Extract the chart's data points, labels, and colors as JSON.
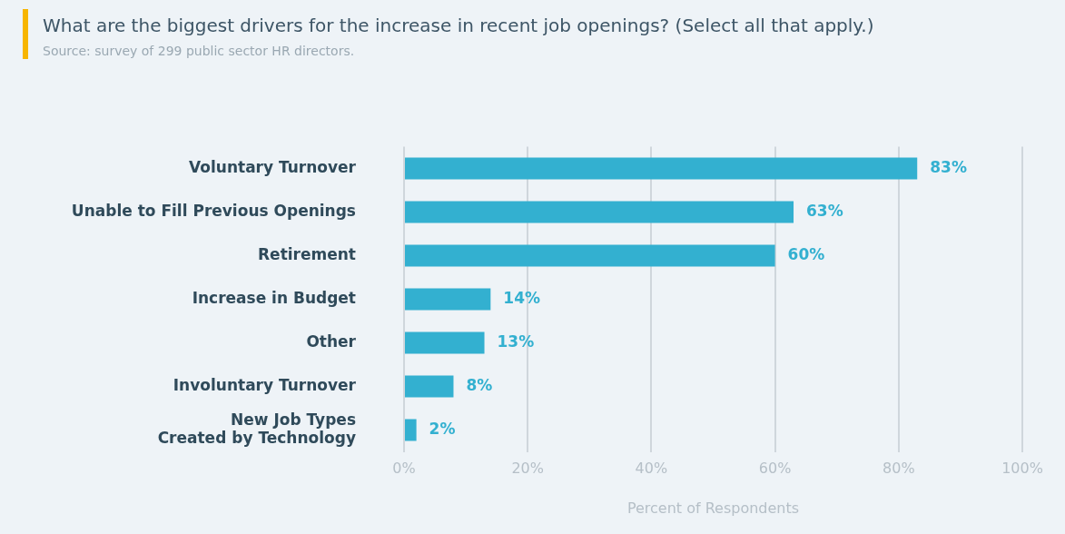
{
  "chart_data": {
    "type": "bar",
    "orientation": "horizontal",
    "title": "What are the biggest drivers for the increase in recent job openings? (Select all that apply.)",
    "annotations": [
      "Source: survey of 299 public sector HR directors."
    ],
    "categories": [
      "Voluntary Turnover",
      "Unable to Fill Previous Openings",
      "Retirement",
      "Increase in Budget",
      "Other",
      "Involuntary Turnover",
      "New Job Types\nCreated by Technology"
    ],
    "values": [
      83,
      63,
      60,
      14,
      13,
      8,
      2
    ],
    "color": "#33b0d0",
    "value_labels": [
      "83%",
      "63%",
      "60%",
      "14%",
      "13%",
      "8%",
      "2%"
    ],
    "xlim": [
      0,
      100
    ],
    "xticks": [
      {
        "value": 0,
        "label": "0%"
      },
      {
        "value": 20,
        "label": "20%"
      },
      {
        "value": 40,
        "label": "40%"
      },
      {
        "value": 60,
        "label": "60%"
      },
      {
        "value": 80,
        "label": "80%"
      },
      {
        "value": 100,
        "label": "100%"
      }
    ],
    "xlabel": "Percent of Respondents",
    "grid": "x",
    "legend": false
  }
}
